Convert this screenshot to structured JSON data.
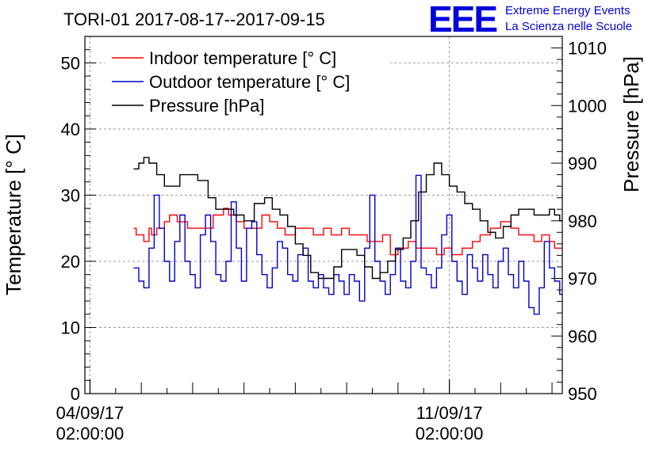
{
  "header": {
    "title": "TORI-01 2017-08-17--2017-09-15",
    "logo": "EEE",
    "logo_line1": "Extreme Energy Events",
    "logo_line2": "La Scienza nelle Scuole"
  },
  "chart_data": {
    "type": "line",
    "title": "TORI-01 2017-08-17--2017-09-15",
    "ylabel_left": "Temperature [° C]",
    "ylabel_right": "Pressure [hPa]",
    "xlabel": "",
    "x_unit": "days since 2017-09-04 02:00:00",
    "xlim": [
      -0.1,
      9.2
    ],
    "ylim_left": [
      0,
      54
    ],
    "ylim_right": [
      950,
      1012
    ],
    "grid": true,
    "legend_position": "top-left",
    "x_ticks": [
      {
        "x": 0,
        "line1": "04/09/17",
        "line2": "02:00:00"
      },
      {
        "x": 7,
        "line1": "11/09/17",
        "line2": "02:00:00"
      }
    ],
    "y_ticks_left": [
      0,
      10,
      20,
      30,
      40,
      50
    ],
    "y_ticks_right": [
      950,
      960,
      970,
      980,
      990,
      1000,
      1010
    ],
    "series": [
      {
        "name": "Indoor temperature [° C]",
        "color": "#ff0000",
        "axis": "left",
        "x": [
          0.85,
          0.9,
          0.95,
          1.05,
          1.15,
          1.2,
          1.3,
          1.45,
          1.55,
          1.7,
          1.9,
          2.2,
          2.4,
          2.6,
          2.7,
          2.85,
          3.0,
          3.2,
          3.35,
          3.5,
          3.65,
          3.8,
          4.0,
          4.2,
          4.35,
          4.55,
          4.7,
          4.9,
          5.05,
          5.25,
          5.4,
          5.55,
          5.7,
          5.85,
          6.0,
          6.2,
          6.35,
          6.55,
          6.75,
          6.9,
          7.05,
          7.25,
          7.45,
          7.6,
          7.8,
          8.0,
          8.2,
          8.35,
          8.5,
          8.65,
          8.8,
          8.95,
          9.05,
          9.15,
          9.2
        ],
        "y": [
          25,
          24,
          24,
          23,
          25,
          24,
          25,
          26,
          27,
          26,
          25,
          25,
          27,
          28,
          27,
          26,
          25,
          25,
          27,
          26,
          25,
          24,
          25,
          25,
          24,
          25,
          24,
          25,
          24,
          24,
          23,
          23,
          24,
          21,
          22,
          23,
          22,
          22,
          21,
          22,
          21,
          22,
          23,
          24,
          25,
          26,
          25,
          24,
          24,
          23,
          24,
          23,
          22,
          22,
          22
        ]
      },
      {
        "name": "Outdoor temperature [° C]",
        "color": "#0000cc",
        "axis": "left",
        "x": [
          0.85,
          0.95,
          1.05,
          1.15,
          1.25,
          1.35,
          1.45,
          1.55,
          1.65,
          1.75,
          1.85,
          1.95,
          2.05,
          2.15,
          2.25,
          2.35,
          2.45,
          2.55,
          2.65,
          2.75,
          2.85,
          2.95,
          3.05,
          3.15,
          3.25,
          3.35,
          3.45,
          3.55,
          3.65,
          3.75,
          3.85,
          3.95,
          4.05,
          4.15,
          4.25,
          4.35,
          4.45,
          4.55,
          4.65,
          4.75,
          4.85,
          4.95,
          5.05,
          5.15,
          5.25,
          5.35,
          5.45,
          5.55,
          5.65,
          5.75,
          5.85,
          5.95,
          6.05,
          6.15,
          6.25,
          6.35,
          6.45,
          6.55,
          6.65,
          6.75,
          6.85,
          6.95,
          7.05,
          7.15,
          7.25,
          7.35,
          7.45,
          7.55,
          7.65,
          7.75,
          7.85,
          7.95,
          8.05,
          8.15,
          8.25,
          8.35,
          8.45,
          8.55,
          8.65,
          8.75,
          8.85,
          8.95,
          9.05,
          9.15,
          9.2
        ],
        "y": [
          19,
          17,
          16,
          22,
          30,
          25,
          20,
          17,
          23,
          27,
          20,
          18,
          16,
          24,
          27,
          23,
          18,
          17,
          20,
          29,
          22,
          17,
          25,
          26,
          21,
          18,
          16,
          19,
          23,
          22,
          18,
          17,
          21,
          22,
          17,
          16,
          18,
          16,
          15,
          18,
          17,
          15,
          18,
          17,
          14,
          22,
          30,
          20,
          17,
          15,
          18,
          22,
          17,
          16,
          20,
          33,
          19,
          18,
          16,
          19,
          24,
          27,
          20,
          17,
          15,
          21,
          19,
          17,
          21,
          18,
          16,
          20,
          22,
          18,
          16,
          20,
          17,
          13,
          12,
          16,
          23,
          19,
          17,
          15,
          15
        ]
      },
      {
        "name": "Pressure [hPa]",
        "color": "#000000",
        "axis": "right",
        "x": [
          0.85,
          0.95,
          1.05,
          1.15,
          1.3,
          1.45,
          1.6,
          1.75,
          1.9,
          2.1,
          2.3,
          2.45,
          2.6,
          2.8,
          3.0,
          3.2,
          3.4,
          3.55,
          3.7,
          3.85,
          4.0,
          4.15,
          4.3,
          4.45,
          4.6,
          4.75,
          4.9,
          5.05,
          5.2,
          5.35,
          5.5,
          5.65,
          5.8,
          5.95,
          6.1,
          6.25,
          6.4,
          6.55,
          6.7,
          6.85,
          7.0,
          7.15,
          7.3,
          7.45,
          7.6,
          7.75,
          7.9,
          8.05,
          8.2,
          8.35,
          8.5,
          8.65,
          8.8,
          8.95,
          9.05,
          9.15,
          9.2
        ],
        "y": [
          989,
          990,
          991,
          990,
          988,
          986,
          986,
          988,
          988,
          987,
          984,
          982,
          982,
          981,
          980,
          983,
          984,
          982,
          981,
          979,
          976,
          974,
          971,
          970,
          970,
          972,
          975,
          975,
          974,
          972,
          970,
          971,
          973,
          975,
          977,
          980,
          985,
          988,
          990,
          988,
          986,
          985,
          983,
          982,
          980,
          978,
          977,
          979,
          981,
          982,
          982,
          981,
          981,
          982,
          981,
          980,
          980
        ]
      }
    ]
  }
}
